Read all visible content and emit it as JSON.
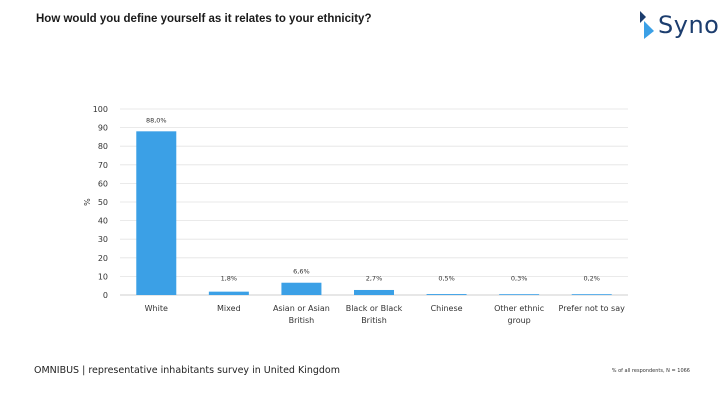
{
  "header": {
    "title": "How would you define yourself as it relates to your ethnicity?",
    "logo_text": "Syno"
  },
  "colors": {
    "bar": "#3ba0e6",
    "logo_blue": "#1c3d6e",
    "logo_light": "#3ba0e6",
    "grid": "#e3e3e3"
  },
  "chart_data": {
    "type": "bar",
    "title": "How would you define yourself as it relates to your ethnicity?",
    "xlabel": "",
    "ylabel": "%",
    "ylim": [
      0,
      100
    ],
    "yticks": [
      0,
      10,
      20,
      30,
      40,
      50,
      60,
      70,
      80,
      90,
      100
    ],
    "grid": true,
    "categories": [
      [
        "White"
      ],
      [
        "Mixed"
      ],
      [
        "Asian or Asian",
        "British"
      ],
      [
        "Black or Black",
        "British"
      ],
      [
        "Chinese"
      ],
      [
        "Other ethnic",
        "group"
      ],
      [
        "Prefer not to say"
      ]
    ],
    "values": [
      88.0,
      1.8,
      6.6,
      2.7,
      0.5,
      0.3,
      0.2
    ],
    "data_labels": [
      "88,0%",
      "1,8%",
      "6,6%",
      "2,7%",
      "0,5%",
      "0,3%",
      "0,2%"
    ]
  },
  "footer": {
    "source": "OMNIBUS | representative inhabitants survey in United Kingdom",
    "note": "% of all respondents, N = 1066"
  }
}
